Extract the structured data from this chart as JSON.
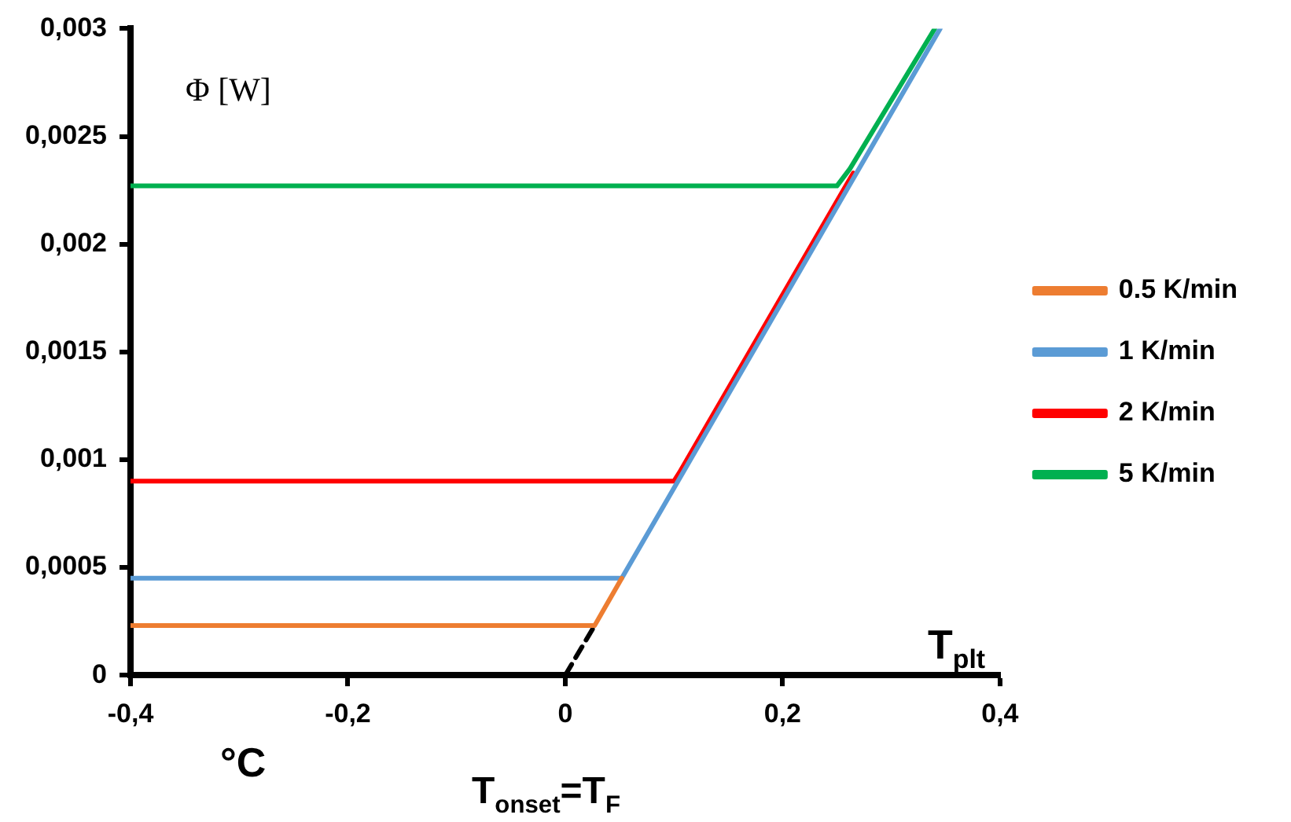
{
  "chart_data": {
    "type": "line",
    "ylabel": "Φ [W]",
    "xlabel": "°C",
    "annotations": [
      "T$_{plt}$",
      "T$_{onset}$=T$_{F}$"
    ],
    "xlim": [
      -0.4,
      0.4
    ],
    "xticks": [
      {
        "value": -0.4,
        "label": "-0,4"
      },
      {
        "value": -0.2,
        "label": "-0,2"
      },
      0,
      {
        "value": 0.2,
        "label": "0,2"
      },
      {
        "value": 0.4,
        "label": "0,4"
      }
    ],
    "ylim": [
      0,
      0.003
    ],
    "yticks": [
      0,
      {
        "value": 0.0005,
        "label": "0,0005"
      },
      {
        "value": 0.001,
        "label": "0,001"
      },
      {
        "value": 0.0015,
        "label": "0,0015"
      },
      {
        "value": 0.002,
        "label": "0,002"
      },
      {
        "value": 0.0025,
        "label": "0,0025"
      },
      {
        "value": 0.003,
        "label": "0,003"
      }
    ],
    "grid": false,
    "legend": "right",
    "marker": "none",
    "line_style": "solid",
    "series": [
      {
        "name": "0.5 K/min",
        "color": "#ed7d31",
        "x": [
          -0.4,
          0.027,
          0.052
        ],
        "values": [
          0.00023,
          0.00023,
          0.00045
        ]
      },
      {
        "name": "1 K/min",
        "color": "#5b9bd5",
        "x": [
          -0.4,
          0.052,
          0.345
        ],
        "values": [
          0.00045,
          0.00045,
          0.003
        ]
      },
      {
        "name": "2 K/min",
        "color": "#ff0000",
        "x": [
          -0.4,
          0.1,
          0.105,
          0.265
        ],
        "values": [
          0.0009,
          0.0009,
          0.00094,
          0.00233
        ]
      },
      {
        "name": "5 K/min",
        "color": "#00b050",
        "x": [
          -0.4,
          0.25,
          0.262,
          0.34
        ],
        "values": [
          0.00227,
          0.00227,
          0.00235,
          0.003
        ]
      },
      {
        "color": "#000000",
        "line_style": "dashed",
        "x": [
          0,
          0.027
        ],
        "values": [
          0,
          0.00023
        ]
      }
    ]
  }
}
